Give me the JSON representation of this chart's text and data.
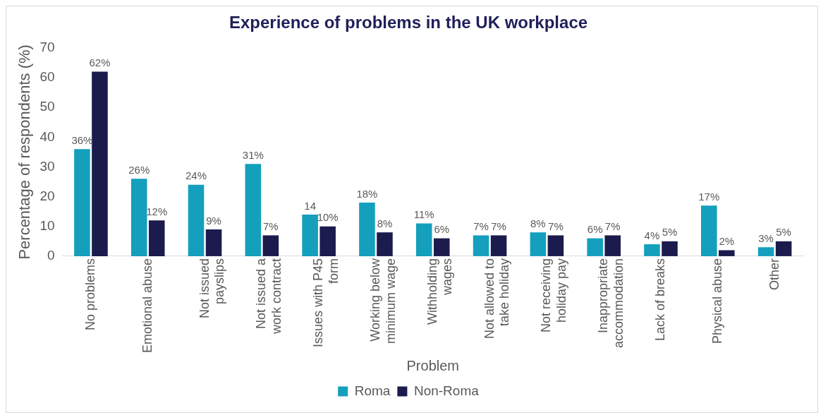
{
  "chart_data": {
    "type": "bar",
    "title": "Experience of problems in the UK workplace",
    "xlabel": "Problem",
    "ylabel": "Percentage of respondents (%)",
    "categories": [
      "No problems",
      "Emotional abuse",
      "Not issued payslips",
      "Not issued a work contract",
      "Issues with P45 form",
      "Working below minimum wage",
      "Withholding wages",
      "Not allowed to take holiday",
      "Not receiving holiday pay",
      "Inappropriate accommodation",
      "Lack of breaks",
      "Physical abuse",
      "Other"
    ],
    "series": [
      {
        "name": "Roma",
        "color": "#149fbd",
        "values": [
          36,
          26,
          24,
          31,
          14,
          18,
          11,
          7,
          8,
          6,
          4,
          17,
          3
        ],
        "value_labels": [
          "36%",
          "26%",
          "24%",
          "31%",
          "14",
          "18%",
          "11%",
          "7%",
          "8%",
          "6%",
          "4%",
          "17%",
          "3%"
        ]
      },
      {
        "name": "Non-Roma",
        "color": "#1b1b4d",
        "values": [
          62,
          12,
          9,
          7,
          10,
          8,
          6,
          7,
          7,
          7,
          5,
          2,
          5
        ],
        "value_labels": [
          "62%",
          "12%",
          "9%",
          "7%",
          "10%",
          "8%",
          "6%",
          "7%",
          "7%",
          "7%",
          "5%",
          "2%",
          "5%"
        ]
      }
    ],
    "ylim": [
      0,
      70
    ],
    "yticks": [
      0,
      10,
      20,
      30,
      40,
      50,
      60,
      70
    ],
    "grid": false,
    "legend": "bottom"
  }
}
